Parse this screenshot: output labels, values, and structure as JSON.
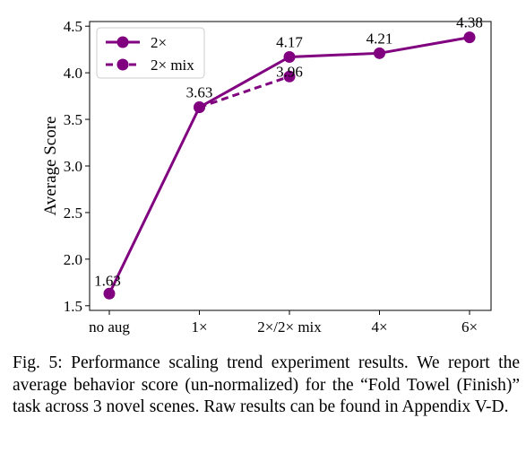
{
  "chart_data": {
    "type": "line",
    "categories": [
      "no aug",
      "1×",
      "2×/2× mix",
      "4×",
      "6×"
    ],
    "ylabel": "Average Score",
    "xlabel": "",
    "ylim": [
      1.45,
      4.55
    ],
    "yticks": [
      1.5,
      2.0,
      2.5,
      3.0,
      3.5,
      4.0,
      4.5
    ],
    "ytick_labels": [
      "1.5",
      "2.0",
      "2.5",
      "3.0",
      "3.5",
      "4.0",
      "4.5"
    ],
    "grid": false,
    "legend_position": "top-left",
    "color": "#800080",
    "series": [
      {
        "name": "2×",
        "style": "solid",
        "x": [
          0,
          1,
          2,
          3,
          4
        ],
        "values": [
          1.63,
          3.63,
          4.17,
          4.21,
          4.38
        ],
        "labels": [
          "1.63",
          "3.63",
          "4.17",
          "4.21",
          "4.38"
        ]
      },
      {
        "name": "2× mix",
        "style": "dashed",
        "x": [
          1,
          2
        ],
        "values": [
          3.63,
          3.96
        ],
        "labels": [
          "",
          "3.96"
        ]
      }
    ]
  },
  "caption": {
    "label": "Fig. 5:",
    "text": "Performance scaling trend experiment results. We report the average behavior score (un-normalized) for the “Fold Towel (Finish)” task across 3 novel scenes. Raw results can be found in Appendix V-D."
  }
}
